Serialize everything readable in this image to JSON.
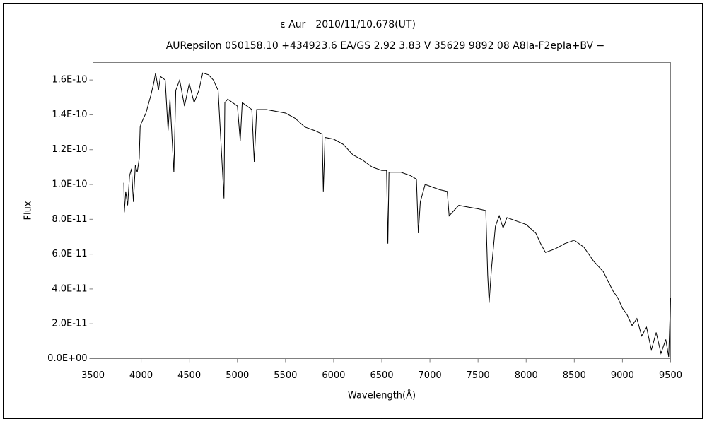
{
  "chart_data": {
    "type": "line",
    "title": "ε Aur　2010/11/10.678(UT)",
    "subtitle": "AURepsilon 050158.10 +434923.6 EA/GS 2.92 3.83 V 35629 9892 08 A8Ⅰa-F2epⅠa+BV −",
    "x_label": "Wavelength(Å)",
    "y_label": "Flux",
    "color": "#000000",
    "grid": false,
    "xlim": [
      3500,
      9500
    ],
    "xticks": [
      3500,
      4000,
      4500,
      5000,
      5500,
      6000,
      6500,
      7000,
      7500,
      8000,
      8500,
      9000,
      9500
    ],
    "ylim": [
      0,
      1.7e-10
    ],
    "yticks": [
      {
        "value": 0,
        "label": "0.0E+00"
      },
      {
        "value": 2e-11,
        "label": "2.0E-11"
      },
      {
        "value": 4e-11,
        "label": "4.0E-11"
      },
      {
        "value": 6e-11,
        "label": "6.0E-11"
      },
      {
        "value": 8e-11,
        "label": "8.0E-11"
      },
      {
        "value": 1e-10,
        "label": "1.0E-10"
      },
      {
        "value": 1.2e-10,
        "label": "1.2E-10"
      },
      {
        "value": 1.4e-10,
        "label": "1.4E-10"
      },
      {
        "value": 1.6e-10,
        "label": "1.6E-10"
      }
    ],
    "x": [
      3820,
      3825,
      3840,
      3860,
      3880,
      3900,
      3920,
      3940,
      3960,
      3980,
      3990,
      4000,
      4050,
      4100,
      4130,
      4150,
      4180,
      4200,
      4250,
      4280,
      4300,
      4340,
      4360,
      4400,
      4450,
      4500,
      4550,
      4600,
      4640,
      4700,
      4750,
      4800,
      4861,
      4870,
      4900,
      4950,
      5000,
      5030,
      5050,
      5100,
      5150,
      5175,
      5200,
      5300,
      5400,
      5500,
      5600,
      5700,
      5800,
      5880,
      5893,
      5910,
      6000,
      6100,
      6200,
      6300,
      6400,
      6500,
      6550,
      6563,
      6575,
      6700,
      6800,
      6860,
      6880,
      6900,
      6950,
      7100,
      7180,
      7200,
      7250,
      7300,
      7400,
      7500,
      7580,
      7600,
      7615,
      7640,
      7680,
      7720,
      7760,
      7800,
      7900,
      8000,
      8100,
      8150,
      8200,
      8300,
      8400,
      8500,
      8600,
      8700,
      8800,
      8900,
      8950,
      9000,
      9050,
      9100,
      9150,
      9200,
      9250,
      9300,
      9350,
      9400,
      9450,
      9480,
      9500
    ],
    "values": [
      1.01e-10,
      8.4e-11,
      9.6e-11,
      8.8e-11,
      1.05e-10,
      1.09e-10,
      9e-11,
      1.11e-10,
      1.07e-10,
      1.15e-10,
      1.33e-10,
      1.35e-10,
      1.41e-10,
      1.51e-10,
      1.58e-10,
      1.64e-10,
      1.54e-10,
      1.62e-10,
      1.6e-10,
      1.31e-10,
      1.49e-10,
      1.07e-10,
      1.54e-10,
      1.6e-10,
      1.45e-10,
      1.58e-10,
      1.47e-10,
      1.54e-10,
      1.64e-10,
      1.63e-10,
      1.6e-10,
      1.54e-10,
      9.2e-11,
      1.47e-10,
      1.49e-10,
      1.47e-10,
      1.45e-10,
      1.25e-10,
      1.47e-10,
      1.45e-10,
      1.43e-10,
      1.13e-10,
      1.43e-10,
      1.43e-10,
      1.42e-10,
      1.41e-10,
      1.38e-10,
      1.33e-10,
      1.31e-10,
      1.29e-10,
      9.6e-11,
      1.27e-10,
      1.26e-10,
      1.23e-10,
      1.17e-10,
      1.14e-10,
      1.1e-10,
      1.08e-10,
      1.08e-10,
      6.6e-11,
      1.07e-10,
      1.07e-10,
      1.05e-10,
      1.03e-10,
      7.2e-11,
      9e-11,
      1e-10,
      9.7e-11,
      9.6e-11,
      8.2e-11,
      8.5e-11,
      8.8e-11,
      8.7e-11,
      8.6e-11,
      8.5e-11,
      4.8e-11,
      3.2e-11,
      5.2e-11,
      7.6e-11,
      8.2e-11,
      7.5e-11,
      8.1e-11,
      7.9e-11,
      7.7e-11,
      7.2e-11,
      6.6e-11,
      6.1e-11,
      6.3e-11,
      6.6e-11,
      6.8e-11,
      6.4e-11,
      5.6e-11,
      5e-11,
      3.9e-11,
      3.5e-11,
      2.9e-11,
      2.5e-11,
      1.9e-11,
      2.3e-11,
      1.3e-11,
      1.8e-11,
      5e-12,
      1.5e-11,
      3e-12,
      1.1e-11,
      1e-12,
      3.5e-11
    ]
  }
}
